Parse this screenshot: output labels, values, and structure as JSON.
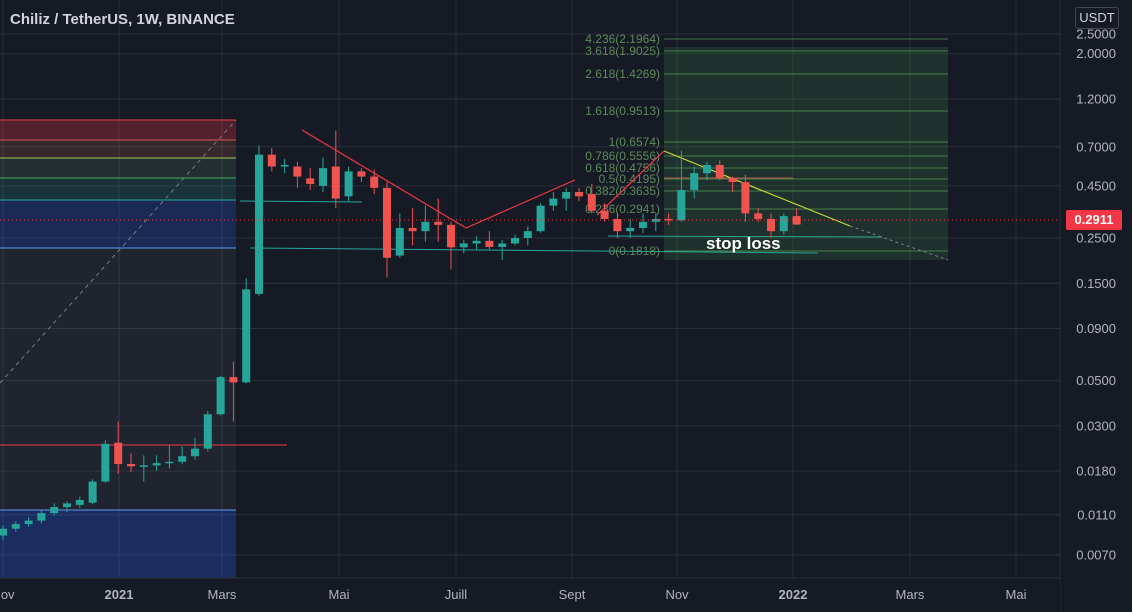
{
  "header": {
    "title": "Chiliz / TetherUS, 1W, BINANCE"
  },
  "price_axis": {
    "currency_label": "USDT",
    "current_price_label": "0.2911"
  },
  "annotation": "stop loss",
  "fib_extension": [
    "4.236(2.1964)",
    "3.618(1.9025)",
    "2.618(1.4269)",
    "1.618(0.9513)",
    "1(0.6574)",
    "0.786(0.5556)",
    "0.618(0.4756)",
    "0.5(0.4195)",
    "0.382(0.3635)",
    "0.236(0.2941)",
    "0(0.1818)"
  ],
  "colors": {
    "background": "#161a25",
    "up": "#26a69a",
    "down": "#ef5350",
    "grid": "#2a2e39",
    "axis_text": "#b2b5be",
    "trend_red": "#f23645",
    "trend_yellow": "#c7d93a",
    "fib_zone": "#4caf50"
  },
  "chart_data": {
    "type": "candlestick",
    "title": "Chiliz / TetherUS, 1W, BINANCE",
    "y_scale": "log",
    "ylim": [
      0.0045,
      2.6
    ],
    "y_ticks": [
      "2.5000",
      "2.0000",
      "1.2000",
      "0.7000",
      "0.4500",
      "0.2500",
      "0.1500",
      "0.0900",
      "0.0500",
      "0.0300",
      "0.0180",
      "0.0110",
      "0.0070"
    ],
    "x_ticks": [
      "Nov",
      "2021",
      "Mars",
      "Mai",
      "Juill",
      "Sept",
      "Nov",
      "2022",
      "Mars",
      "Mai"
    ],
    "candles": [
      {
        "o": 0.0087,
        "h": 0.0098,
        "l": 0.0083,
        "c": 0.0094
      },
      {
        "o": 0.0094,
        "h": 0.0102,
        "l": 0.0091,
        "c": 0.0099
      },
      {
        "o": 0.0099,
        "h": 0.0107,
        "l": 0.0096,
        "c": 0.0103
      },
      {
        "o": 0.0103,
        "h": 0.0116,
        "l": 0.01,
        "c": 0.0112
      },
      {
        "o": 0.0112,
        "h": 0.0125,
        "l": 0.0109,
        "c": 0.012
      },
      {
        "o": 0.012,
        "h": 0.0128,
        "l": 0.0113,
        "c": 0.0125
      },
      {
        "o": 0.0123,
        "h": 0.0135,
        "l": 0.0119,
        "c": 0.013
      },
      {
        "o": 0.0126,
        "h": 0.0164,
        "l": 0.0124,
        "c": 0.016
      },
      {
        "o": 0.016,
        "h": 0.0255,
        "l": 0.0158,
        "c": 0.0245
      },
      {
        "o": 0.0248,
        "h": 0.0315,
        "l": 0.0175,
        "c": 0.0195
      },
      {
        "o": 0.0195,
        "h": 0.022,
        "l": 0.0178,
        "c": 0.019
      },
      {
        "o": 0.019,
        "h": 0.0215,
        "l": 0.016,
        "c": 0.0192
      },
      {
        "o": 0.0192,
        "h": 0.0215,
        "l": 0.018,
        "c": 0.0197
      },
      {
        "o": 0.0197,
        "h": 0.024,
        "l": 0.0185,
        "c": 0.02
      },
      {
        "o": 0.02,
        "h": 0.0238,
        "l": 0.0195,
        "c": 0.0213
      },
      {
        "o": 0.0213,
        "h": 0.0262,
        "l": 0.0205,
        "c": 0.0232
      },
      {
        "o": 0.0232,
        "h": 0.0355,
        "l": 0.0225,
        "c": 0.0342
      },
      {
        "o": 0.0342,
        "h": 0.0528,
        "l": 0.0338,
        "c": 0.052
      },
      {
        "o": 0.052,
        "h": 0.062,
        "l": 0.0315,
        "c": 0.049
      },
      {
        "o": 0.049,
        "h": 0.159,
        "l": 0.0485,
        "c": 0.14
      },
      {
        "o": 0.133,
        "h": 0.71,
        "l": 0.13,
        "c": 0.64
      },
      {
        "o": 0.64,
        "h": 0.69,
        "l": 0.53,
        "c": 0.56
      },
      {
        "o": 0.56,
        "h": 0.61,
        "l": 0.52,
        "c": 0.57
      },
      {
        "o": 0.56,
        "h": 0.59,
        "l": 0.44,
        "c": 0.5
      },
      {
        "o": 0.49,
        "h": 0.55,
        "l": 0.43,
        "c": 0.46
      },
      {
        "o": 0.45,
        "h": 0.62,
        "l": 0.42,
        "c": 0.55
      },
      {
        "o": 0.56,
        "h": 0.84,
        "l": 0.35,
        "c": 0.39
      },
      {
        "o": 0.4,
        "h": 0.56,
        "l": 0.38,
        "c": 0.53
      },
      {
        "o": 0.53,
        "h": 0.55,
        "l": 0.47,
        "c": 0.5
      },
      {
        "o": 0.5,
        "h": 0.54,
        "l": 0.41,
        "c": 0.44
      },
      {
        "o": 0.44,
        "h": 0.47,
        "l": 0.16,
        "c": 0.2
      },
      {
        "o": 0.205,
        "h": 0.33,
        "l": 0.2,
        "c": 0.28
      },
      {
        "o": 0.28,
        "h": 0.35,
        "l": 0.23,
        "c": 0.27
      },
      {
        "o": 0.27,
        "h": 0.36,
        "l": 0.24,
        "c": 0.3
      },
      {
        "o": 0.3,
        "h": 0.39,
        "l": 0.24,
        "c": 0.29
      },
      {
        "o": 0.29,
        "h": 0.3,
        "l": 0.175,
        "c": 0.225
      },
      {
        "o": 0.225,
        "h": 0.245,
        "l": 0.21,
        "c": 0.235
      },
      {
        "o": 0.235,
        "h": 0.255,
        "l": 0.22,
        "c": 0.242
      },
      {
        "o": 0.242,
        "h": 0.27,
        "l": 0.22,
        "c": 0.226
      },
      {
        "o": 0.226,
        "h": 0.245,
        "l": 0.195,
        "c": 0.235
      },
      {
        "o": 0.235,
        "h": 0.26,
        "l": 0.23,
        "c": 0.25
      },
      {
        "o": 0.25,
        "h": 0.285,
        "l": 0.23,
        "c": 0.27
      },
      {
        "o": 0.27,
        "h": 0.37,
        "l": 0.265,
        "c": 0.36
      },
      {
        "o": 0.36,
        "h": 0.42,
        "l": 0.34,
        "c": 0.39
      },
      {
        "o": 0.39,
        "h": 0.44,
        "l": 0.34,
        "c": 0.42
      },
      {
        "o": 0.42,
        "h": 0.44,
        "l": 0.38,
        "c": 0.4
      },
      {
        "o": 0.41,
        "h": 0.46,
        "l": 0.33,
        "c": 0.34
      },
      {
        "o": 0.34,
        "h": 0.37,
        "l": 0.3,
        "c": 0.31
      },
      {
        "o": 0.31,
        "h": 0.33,
        "l": 0.25,
        "c": 0.27
      },
      {
        "o": 0.27,
        "h": 0.31,
        "l": 0.25,
        "c": 0.28
      },
      {
        "o": 0.28,
        "h": 0.33,
        "l": 0.265,
        "c": 0.3
      },
      {
        "o": 0.3,
        "h": 0.33,
        "l": 0.27,
        "c": 0.31
      },
      {
        "o": 0.31,
        "h": 0.33,
        "l": 0.29,
        "c": 0.305
      },
      {
        "o": 0.305,
        "h": 0.67,
        "l": 0.3,
        "c": 0.43
      },
      {
        "o": 0.43,
        "h": 0.56,
        "l": 0.39,
        "c": 0.52
      },
      {
        "o": 0.52,
        "h": 0.59,
        "l": 0.48,
        "c": 0.57
      },
      {
        "o": 0.57,
        "h": 0.6,
        "l": 0.48,
        "c": 0.49
      },
      {
        "o": 0.49,
        "h": 0.5,
        "l": 0.42,
        "c": 0.47
      },
      {
        "o": 0.47,
        "h": 0.51,
        "l": 0.3,
        "c": 0.33
      },
      {
        "o": 0.33,
        "h": 0.35,
        "l": 0.3,
        "c": 0.31
      },
      {
        "o": 0.31,
        "h": 0.33,
        "l": 0.25,
        "c": 0.27
      },
      {
        "o": 0.27,
        "h": 0.33,
        "l": 0.26,
        "c": 0.32
      },
      {
        "o": 0.32,
        "h": 0.35,
        "l": 0.29,
        "c": 0.2911
      }
    ]
  }
}
